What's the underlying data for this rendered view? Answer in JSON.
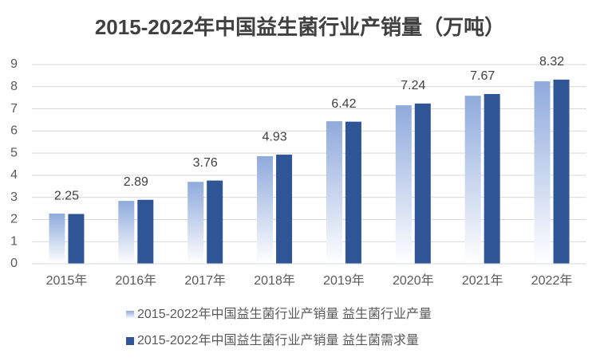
{
  "chart_data": {
    "type": "bar",
    "title": "2015-2022年中国益生菌行业产销量（万吨）",
    "categories": [
      "2015年",
      "2016年",
      "2017年",
      "2018年",
      "2019年",
      "2020年",
      "2021年",
      "2022年"
    ],
    "series": [
      {
        "name": "2015-2022年中国益生菌行业产销量 益生菌行业产量",
        "color": "#8faadc",
        "gradient": true,
        "show_labels": false,
        "values": [
          2.27,
          2.84,
          3.7,
          4.86,
          6.44,
          7.16,
          7.59,
          8.24
        ]
      },
      {
        "name": "2015-2022年中国益生菌行业产销量 益生菌需求量",
        "color": "#2f5597",
        "gradient": false,
        "show_labels": true,
        "values": [
          2.25,
          2.89,
          3.76,
          4.93,
          6.42,
          7.24,
          7.67,
          8.32
        ]
      }
    ],
    "ylim": [
      0,
      9
    ],
    "yticks": [
      0,
      1,
      2,
      3,
      4,
      5,
      6,
      7,
      8,
      9
    ],
    "grid": true,
    "legend": "bottom"
  }
}
